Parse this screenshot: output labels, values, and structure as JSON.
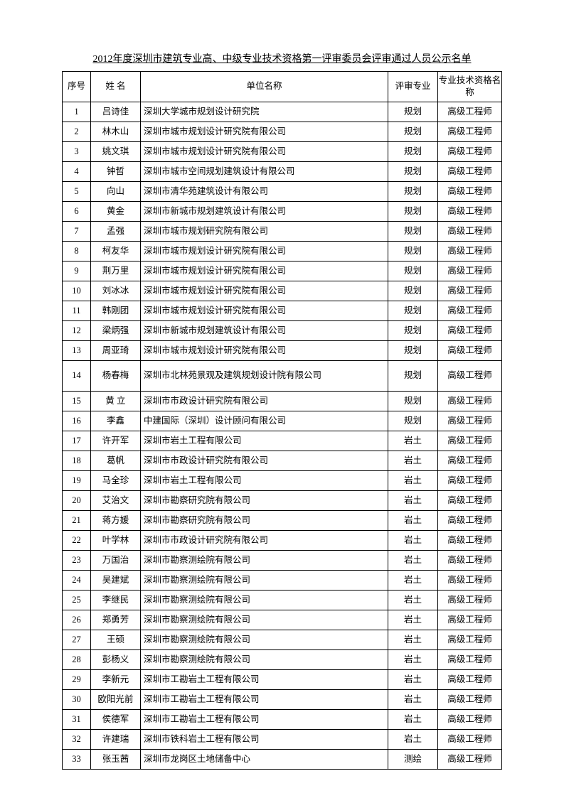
{
  "doc_title": "2012年度深圳市建筑专业高、中级专业技术资格第一评审委员会评审通过人员公示名单",
  "columns": {
    "seq": "序号",
    "name": "姓 名",
    "unit": "单位名称",
    "specialty": "评审专业",
    "pro_title": "专业技术资格名称"
  },
  "rows": [
    {
      "seq": "1",
      "name": "吕诗佳",
      "unit": "深圳大学城市规划设计研究院",
      "spec": "规划",
      "title": "高级工程师",
      "tall": false
    },
    {
      "seq": "2",
      "name": "林木山",
      "unit": "深圳市城市规划设计研究院有限公司",
      "spec": "规划",
      "title": "高级工程师",
      "tall": false
    },
    {
      "seq": "3",
      "name": "姚文琪",
      "unit": "深圳市城市规划设计研究院有限公司",
      "spec": "规划",
      "title": "高级工程师",
      "tall": false
    },
    {
      "seq": "4",
      "name": "钟哲",
      "unit": "深圳市城市空间规划建筑设计有限公司",
      "spec": "规划",
      "title": "高级工程师",
      "tall": false
    },
    {
      "seq": "5",
      "name": "向山",
      "unit": "深圳市清华苑建筑设计有限公司",
      "spec": "规划",
      "title": "高级工程师",
      "tall": false
    },
    {
      "seq": "6",
      "name": "黄金",
      "unit": "深圳市新城市规划建筑设计有限公司",
      "spec": "规划",
      "title": "高级工程师",
      "tall": false
    },
    {
      "seq": "7",
      "name": "孟强",
      "unit": "深圳市城市规划研究院有限公司",
      "spec": "规划",
      "title": "高级工程师",
      "tall": false
    },
    {
      "seq": "8",
      "name": "柯友华",
      "unit": "深圳市城市规划设计研究院有限公司",
      "spec": "规划",
      "title": "高级工程师",
      "tall": false
    },
    {
      "seq": "9",
      "name": "荆万里",
      "unit": "深圳市城市规划设计研究院有限公司",
      "spec": "规划",
      "title": "高级工程师",
      "tall": false
    },
    {
      "seq": "10",
      "name": "刘冰冰",
      "unit": "深圳市城市规划设计研究院有限公司",
      "spec": "规划",
      "title": "高级工程师",
      "tall": false
    },
    {
      "seq": "11",
      "name": "韩刚团",
      "unit": "深圳市城市规划设计研究院有限公司",
      "spec": "规划",
      "title": "高级工程师",
      "tall": false
    },
    {
      "seq": "12",
      "name": "梁炳强",
      "unit": "深圳市新城市规划建筑设计有限公司",
      "spec": "规划",
      "title": "高级工程师",
      "tall": false
    },
    {
      "seq": "13",
      "name": "周亚琦",
      "unit": "深圳市城市规划设计研究院有限公司",
      "spec": "规划",
      "title": "高级工程师",
      "tall": false
    },
    {
      "seq": "14",
      "name": "杨春梅",
      "unit": "深圳市北林苑景观及建筑规划设计院有限公司",
      "spec": "规划",
      "title": "高级工程师",
      "tall": true
    },
    {
      "seq": "15",
      "name": "黄 立",
      "unit": "深圳市市政设计研究院有限公司",
      "spec": "规划",
      "title": "高级工程师",
      "tall": false
    },
    {
      "seq": "16",
      "name": "李鑫",
      "unit": "中建国际（深圳）设计顾问有限公司",
      "spec": "规划",
      "title": "高级工程师",
      "tall": false
    },
    {
      "seq": "17",
      "name": "许开军",
      "unit": "深圳市岩土工程有限公司",
      "spec": "岩土",
      "title": "高级工程师",
      "tall": false
    },
    {
      "seq": "18",
      "name": "葛帆",
      "unit": "深圳市市政设计研究院有限公司",
      "spec": "岩土",
      "title": "高级工程师",
      "tall": false
    },
    {
      "seq": "19",
      "name": "马全珍",
      "unit": "深圳市岩土工程有限公司",
      "spec": "岩土",
      "title": "高级工程师",
      "tall": false
    },
    {
      "seq": "20",
      "name": "艾治文",
      "unit": "深圳市勘察研究院有限公司",
      "spec": "岩土",
      "title": "高级工程师",
      "tall": false
    },
    {
      "seq": "21",
      "name": "蒋方媛",
      "unit": "深圳市勘察研究院有限公司",
      "spec": "岩土",
      "title": "高级工程师",
      "tall": false
    },
    {
      "seq": "22",
      "name": "叶学林",
      "unit": "深圳市市政设计研究院有限公司",
      "spec": "岩土",
      "title": "高级工程师",
      "tall": false
    },
    {
      "seq": "23",
      "name": "万国治",
      "unit": "深圳市勘察测绘院有限公司",
      "spec": "岩土",
      "title": "高级工程师",
      "tall": false
    },
    {
      "seq": "24",
      "name": "吴建斌",
      "unit": "深圳市勘察测绘院有限公司",
      "spec": "岩土",
      "title": "高级工程师",
      "tall": false
    },
    {
      "seq": "25",
      "name": "李继民",
      "unit": "深圳市勘察测绘院有限公司",
      "spec": "岩土",
      "title": "高级工程师",
      "tall": false
    },
    {
      "seq": "26",
      "name": "郑勇芳",
      "unit": "深圳市勘察测绘院有限公司",
      "spec": "岩土",
      "title": "高级工程师",
      "tall": false
    },
    {
      "seq": "27",
      "name": "王硕",
      "unit": "深圳市勘察测绘院有限公司",
      "spec": "岩土",
      "title": "高级工程师",
      "tall": false
    },
    {
      "seq": "28",
      "name": "彭杨义",
      "unit": "深圳市勘察测绘院有限公司",
      "spec": "岩土",
      "title": "高级工程师",
      "tall": false
    },
    {
      "seq": "29",
      "name": "李新元",
      "unit": "深圳市工勘岩土工程有限公司",
      "spec": "岩土",
      "title": "高级工程师",
      "tall": false
    },
    {
      "seq": "30",
      "name": "欧阳光前",
      "unit": "深圳市工勘岩土工程有限公司",
      "spec": "岩土",
      "title": "高级工程师",
      "tall": false
    },
    {
      "seq": "31",
      "name": "侯德军",
      "unit": "深圳市工勘岩土工程有限公司",
      "spec": "岩土",
      "title": "高级工程师",
      "tall": false
    },
    {
      "seq": "32",
      "name": "许建瑞",
      "unit": "深圳市铁科岩土工程有限公司",
      "spec": "岩土",
      "title": "高级工程师",
      "tall": false
    },
    {
      "seq": "33",
      "name": "张玉茜",
      "unit": "深圳市龙岗区土地储备中心",
      "spec": "测绘",
      "title": "高级工程师",
      "tall": false
    }
  ]
}
